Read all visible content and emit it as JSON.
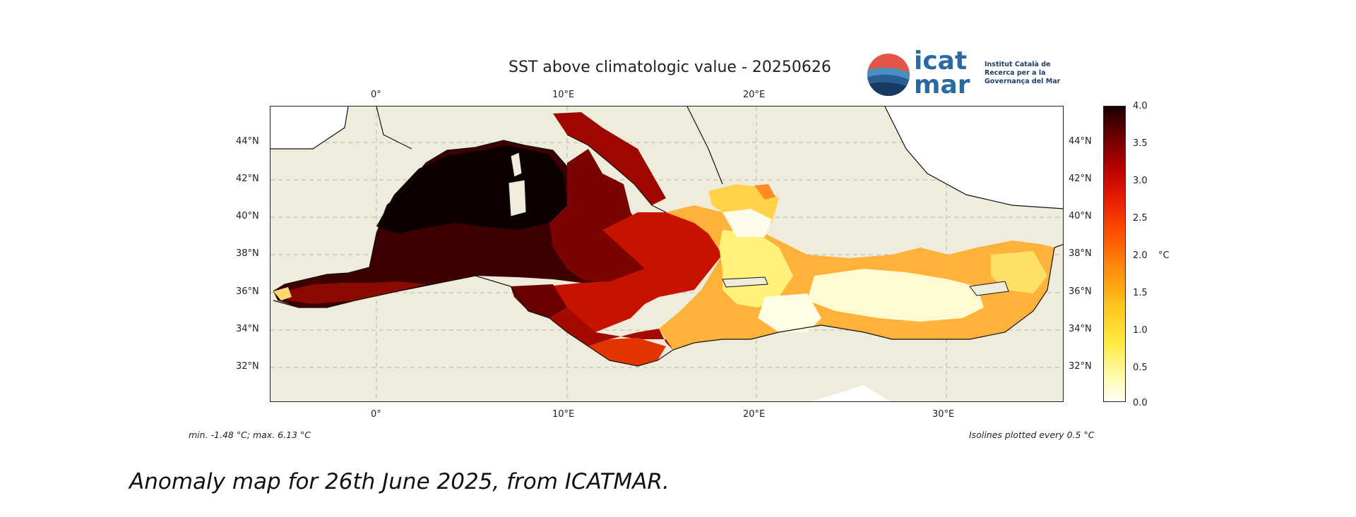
{
  "map": {
    "title": "SST above climatologic value - 20250626",
    "lon_ticks_top": [
      "0°",
      "10°E",
      "20°E"
    ],
    "lon_ticks_bottom": [
      "0°",
      "10°E",
      "20°E",
      "30°E"
    ],
    "lat_ticks": [
      "44°N",
      "42°N",
      "40°N",
      "38°N",
      "36°N",
      "34°N",
      "32°N"
    ],
    "note_left": "min. -1.48 °C; max. 6.13 °C",
    "note_right": "Isolines plotted every 0.5 °C"
  },
  "colorbar": {
    "ticks": [
      "4.0",
      "3.5",
      "3.0",
      "2.5",
      "2.0",
      "1.5",
      "1.0",
      "0.5",
      "0.0"
    ],
    "unit": "°C",
    "range": [
      0.0,
      4.0
    ]
  },
  "logo": {
    "name": "icat mar",
    "subtitle": "Institut Català de Recerca per a la Governança del Mar"
  },
  "caption": "Anomaly map for 26th June 2025, from ICATMAR.",
  "colors": {
    "land": "#efecdc",
    "very_warm": "#1a0000",
    "warm": "#b10000",
    "medium": "#ff4b00",
    "mild": "#ffc21a",
    "low": "#fffff4",
    "logo_blue": "#2a6aa3"
  }
}
